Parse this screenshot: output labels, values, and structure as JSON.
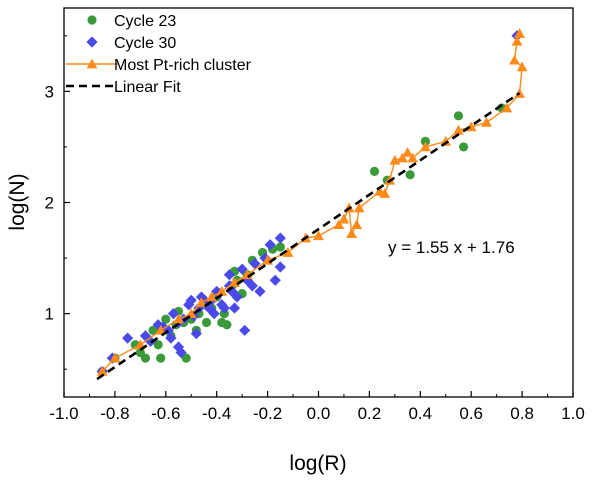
{
  "chart_data": {
    "type": "scatter",
    "title": "",
    "xlabel": "log(R)",
    "ylabel": "log(N)",
    "xlim": [
      -1.0,
      1.0
    ],
    "ylim": [
      0.25,
      3.75
    ],
    "xticks": [
      -1.0,
      -0.8,
      -0.6,
      -0.4,
      -0.2,
      0.0,
      0.2,
      0.4,
      0.6,
      0.8,
      1.0
    ],
    "xtick_labels": [
      "-1.0",
      "-0.8",
      "-0.6",
      "-0.4",
      "-0.2",
      "0.0",
      "0.2",
      "0.4",
      "0.6",
      "0.8",
      "1.0"
    ],
    "yticks": [
      1,
      2,
      3
    ],
    "ytick_labels": [
      "1",
      "2",
      "3"
    ],
    "grid": false,
    "legend_position": "top-left",
    "annotation": "y = 1.55 x + 1.76",
    "series": [
      {
        "name": "Cycle 23",
        "marker": "circle",
        "color": "#3a9a3a",
        "points": [
          [
            -0.85,
            0.48
          ],
          [
            -0.8,
            0.6
          ],
          [
            -0.72,
            0.72
          ],
          [
            -0.7,
            0.65
          ],
          [
            -0.68,
            0.6
          ],
          [
            -0.65,
            0.85
          ],
          [
            -0.63,
            0.72
          ],
          [
            -0.62,
            0.6
          ],
          [
            -0.6,
            0.95
          ],
          [
            -0.58,
            0.8
          ],
          [
            -0.56,
            0.9
          ],
          [
            -0.55,
            1.02
          ],
          [
            -0.53,
            0.92
          ],
          [
            -0.52,
            0.6
          ],
          [
            -0.5,
            0.95
          ],
          [
            -0.48,
            0.85
          ],
          [
            -0.47,
            1.0
          ],
          [
            -0.45,
            1.1
          ],
          [
            -0.44,
            0.92
          ],
          [
            -0.42,
            1.05
          ],
          [
            -0.4,
            1.15
          ],
          [
            -0.38,
            0.92
          ],
          [
            -0.37,
            1.0
          ],
          [
            -0.36,
            0.9
          ],
          [
            -0.34,
            1.25
          ],
          [
            -0.33,
            1.38
          ],
          [
            -0.32,
            1.3
          ],
          [
            -0.3,
            1.18
          ],
          [
            -0.28,
            1.35
          ],
          [
            -0.26,
            1.48
          ],
          [
            -0.22,
            1.55
          ],
          [
            -0.18,
            1.58
          ],
          [
            -0.15,
            1.6
          ],
          [
            0.22,
            2.28
          ],
          [
            0.27,
            2.2
          ],
          [
            0.36,
            2.25
          ],
          [
            0.42,
            2.55
          ],
          [
            0.55,
            2.78
          ],
          [
            0.57,
            2.5
          ],
          [
            0.72,
            2.85
          ]
        ]
      },
      {
        "name": "Cycle 30",
        "marker": "diamond",
        "color": "#4a4ae8",
        "points": [
          [
            -0.85,
            0.48
          ],
          [
            -0.81,
            0.6
          ],
          [
            -0.75,
            0.78
          ],
          [
            -0.68,
            0.8
          ],
          [
            -0.66,
            0.75
          ],
          [
            -0.63,
            0.9
          ],
          [
            -0.61,
            0.88
          ],
          [
            -0.59,
            0.85
          ],
          [
            -0.58,
            0.78
          ],
          [
            -0.57,
            1.0
          ],
          [
            -0.55,
            0.92
          ],
          [
            -0.55,
            0.7
          ],
          [
            -0.54,
            0.65
          ],
          [
            -0.53,
            0.95
          ],
          [
            -0.51,
            1.08
          ],
          [
            -0.5,
            1.12
          ],
          [
            -0.49,
            0.98
          ],
          [
            -0.48,
            0.82
          ],
          [
            -0.47,
            1.05
          ],
          [
            -0.46,
            1.15
          ],
          [
            -0.44,
            1.1
          ],
          [
            -0.43,
            1.05
          ],
          [
            -0.42,
            1.12
          ],
          [
            -0.41,
            1.0
          ],
          [
            -0.4,
            1.2
          ],
          [
            -0.39,
            1.18
          ],
          [
            -0.38,
            1.08
          ],
          [
            -0.37,
            1.05
          ],
          [
            -0.35,
            1.25
          ],
          [
            -0.35,
            1.35
          ],
          [
            -0.34,
            1.2
          ],
          [
            -0.33,
            1.05
          ],
          [
            -0.32,
            1.15
          ],
          [
            -0.3,
            1.4
          ],
          [
            -0.29,
            0.85
          ],
          [
            -0.28,
            1.3
          ],
          [
            -0.26,
            1.25
          ],
          [
            -0.25,
            1.45
          ],
          [
            -0.23,
            1.2
          ],
          [
            -0.21,
            1.5
          ],
          [
            -0.19,
            1.62
          ],
          [
            -0.17,
            1.3
          ],
          [
            -0.15,
            1.68
          ],
          [
            -0.15,
            1.42
          ],
          [
            0.78,
            3.5
          ]
        ]
      },
      {
        "name": "Most Pt-rich cluster",
        "marker": "triangle-line",
        "color": "#ff8a1a",
        "points": [
          [
            -0.85,
            0.48
          ],
          [
            -0.8,
            0.6
          ],
          [
            -0.7,
            0.72
          ],
          [
            -0.62,
            0.85
          ],
          [
            -0.55,
            0.95
          ],
          [
            -0.5,
            1.0
          ],
          [
            -0.46,
            1.1
          ],
          [
            -0.42,
            1.15
          ],
          [
            -0.38,
            1.2
          ],
          [
            -0.33,
            1.28
          ],
          [
            -0.28,
            1.35
          ],
          [
            -0.2,
            1.48
          ],
          [
            -0.12,
            1.55
          ],
          [
            -0.05,
            1.68
          ],
          [
            0.0,
            1.7
          ],
          [
            0.08,
            1.8
          ],
          [
            0.1,
            1.85
          ],
          [
            0.12,
            1.95
          ],
          [
            0.13,
            1.72
          ],
          [
            0.15,
            1.8
          ],
          [
            0.16,
            1.95
          ],
          [
            0.24,
            2.1
          ],
          [
            0.26,
            2.08
          ],
          [
            0.28,
            2.2
          ],
          [
            0.3,
            2.38
          ],
          [
            0.33,
            2.4
          ],
          [
            0.35,
            2.45
          ],
          [
            0.37,
            2.4
          ],
          [
            0.42,
            2.5
          ],
          [
            0.5,
            2.55
          ],
          [
            0.55,
            2.65
          ],
          [
            0.6,
            2.68
          ],
          [
            0.66,
            2.72
          ],
          [
            0.74,
            2.85
          ],
          [
            0.79,
            2.98
          ],
          [
            0.8,
            3.22
          ],
          [
            0.77,
            3.28
          ],
          [
            0.78,
            3.45
          ],
          [
            0.79,
            3.52
          ]
        ]
      },
      {
        "name": "Linear Fit",
        "marker": "dashed-line",
        "color": "#000000",
        "slope": 1.55,
        "intercept": 1.76,
        "x_range": [
          -0.87,
          0.79
        ]
      }
    ]
  }
}
